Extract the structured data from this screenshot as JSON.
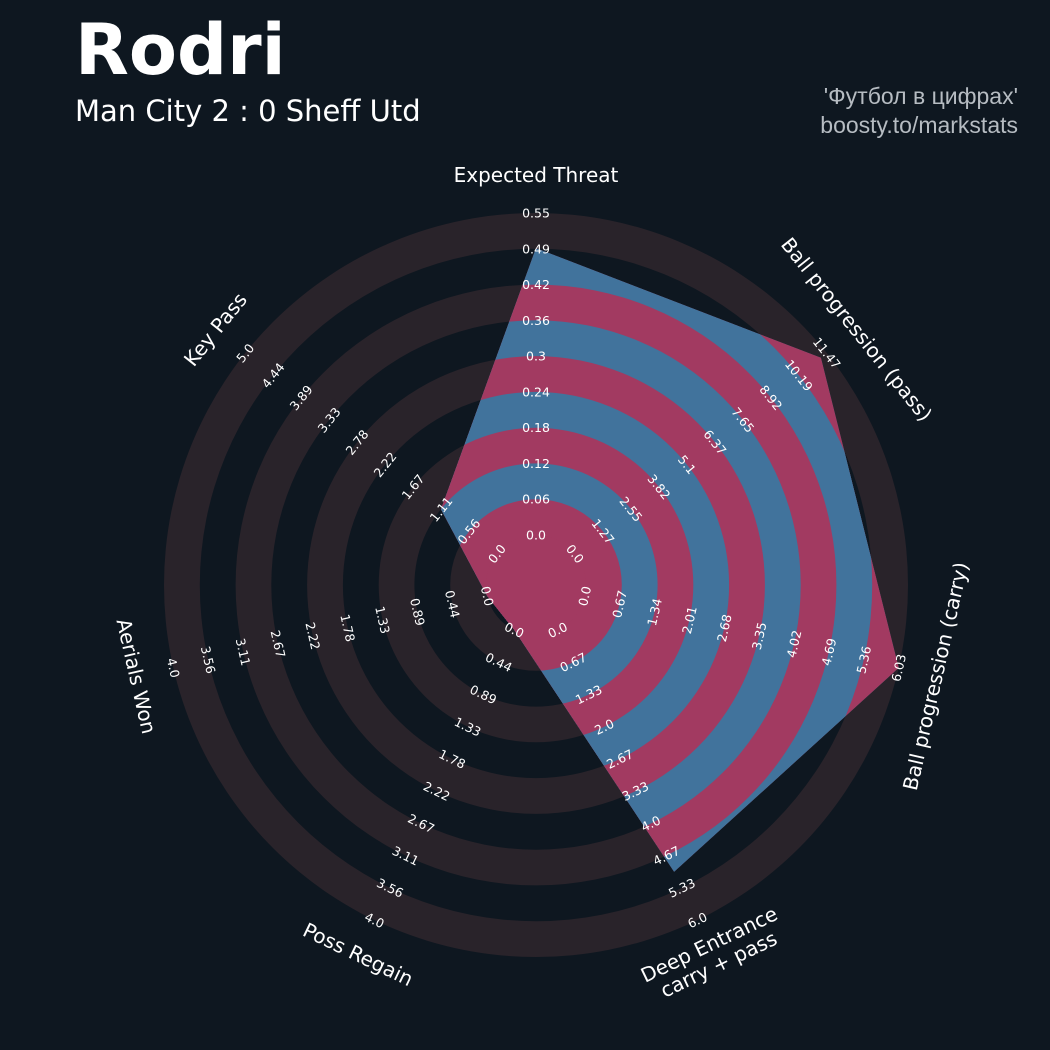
{
  "header": {
    "title": "Rodri",
    "subtitle": "Man City 2 : 0 Sheff Utd",
    "credit_line1": "'Футбол в цифрах'",
    "credit_line2": "boosty.to/markstats"
  },
  "colors": {
    "background": "#0e1720",
    "ring_dark": "#29232a",
    "fill_blue": "#41739c",
    "fill_pink": "#a23a61",
    "text": "#ffffff",
    "credit": "#b6bcc2"
  },
  "chart_data": {
    "type": "radar",
    "title": "Rodri",
    "subtitle": "Man City 2 : 0 Sheff Utd",
    "params": [
      {
        "label": [
          "Expected Threat"
        ],
        "min": 0.0,
        "max": 0.55,
        "value": 0.49,
        "ticks": [
          "0.0",
          "0.06",
          "0.12",
          "0.18",
          "0.24",
          "0.3",
          "0.36",
          "0.42",
          "0.49",
          "0.55"
        ]
      },
      {
        "label": [
          "Ball progression (pass)"
        ],
        "min": 0.0,
        "max": 11.47,
        "value": 11.2,
        "ticks": [
          "0.0",
          "1.27",
          "2.55",
          "3.82",
          "5.1",
          "6.37",
          "7.65",
          "8.92",
          "10.19",
          "11.47"
        ]
      },
      {
        "label": [
          "Ball progression (carry)"
        ],
        "min": 0.0,
        "max": 6.03,
        "value": 6.03,
        "ticks": [
          "0.0",
          "0.67",
          "1.34",
          "2.01",
          "2.68",
          "3.35",
          "4.02",
          "4.69",
          "5.36",
          "6.03"
        ]
      },
      {
        "label": [
          "Deep Entrance",
          "carry + pass"
        ],
        "min": 0.0,
        "max": 6.0,
        "value": 5.0,
        "ticks": [
          "0.0",
          "0.67",
          "1.33",
          "2.0",
          "2.67",
          "3.33",
          "4.0",
          "4.67",
          "5.33",
          "6.0"
        ]
      },
      {
        "label": [
          "Poss Regain"
        ],
        "min": 0.0,
        "max": 4.0,
        "value": 0.0,
        "ticks": [
          "0.0",
          "0.44",
          "0.89",
          "1.33",
          "1.78",
          "2.22",
          "2.67",
          "3.11",
          "3.56",
          "4.0"
        ]
      },
      {
        "label": [
          "Aerials Won"
        ],
        "min": 0.0,
        "max": 4.0,
        "value": 0.0,
        "ticks": [
          "0.0",
          "0.44",
          "0.89",
          "1.33",
          "1.78",
          "2.22",
          "2.67",
          "3.11",
          "3.56",
          "4.0"
        ]
      },
      {
        "label": [
          "Key Pass"
        ],
        "min": 0.0,
        "max": 5.0,
        "value": 1.11,
        "ticks": [
          "0.0",
          "0.56",
          "1.11",
          "1.67",
          "2.22",
          "2.78",
          "3.33",
          "3.89",
          "4.44",
          "5.0"
        ]
      }
    ]
  }
}
